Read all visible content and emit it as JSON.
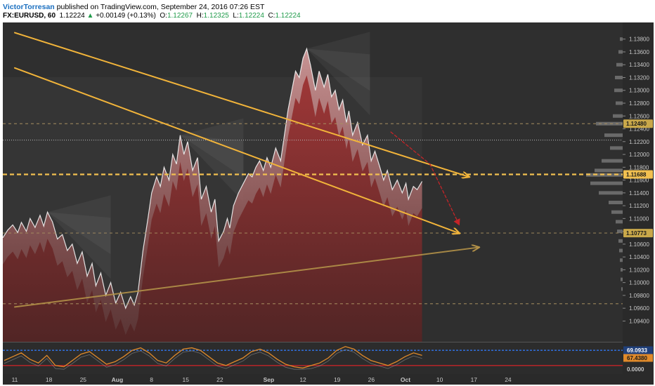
{
  "header": {
    "author": "VictorTorresan",
    "published": "published on TradingView.com, September 24, 2016 07:26 EST",
    "symbol": "FX:EURUSD, 60",
    "last": "1.12224",
    "change_arrow": "▲",
    "change": "+0.00149 (+0.13%)",
    "open_label": "O:",
    "open": "1.12267",
    "high_label": "H:",
    "high": "1.12325",
    "low_label": "L:",
    "low": "1.12224",
    "close_label": "C:",
    "close": "1.12224"
  },
  "chart_data": [
    {
      "type": "line",
      "symbol": "FX:EURUSD",
      "interval": "60",
      "x_tick_labels": [
        "11",
        "18",
        "25",
        "Aug",
        "8",
        "15",
        "22",
        "Sep",
        "12",
        "19",
        "26",
        "Oct",
        "10",
        "17",
        "24"
      ],
      "y_tick_labels": [
        "1.13800",
        "1.13600",
        "1.13400",
        "1.13200",
        "1.13000",
        "1.12800",
        "1.12600",
        "1.12400",
        "1.12200",
        "1.12000",
        "1.11800",
        "1.11600",
        "1.11400",
        "1.11200",
        "1.11000",
        "1.10800",
        "1.10600",
        "1.10400",
        "1.10200",
        "1.10000",
        "1.09800",
        "1.09600",
        "1.09400"
      ],
      "ylim": [
        1.0935,
        1.1395
      ],
      "price_path_x": [
        0,
        4,
        8,
        12,
        15,
        19,
        22,
        26,
        30,
        33,
        36,
        40,
        44,
        48,
        52,
        56,
        60,
        64,
        68,
        72,
        75,
        79,
        83,
        87,
        91,
        95,
        99,
        103,
        106,
        109,
        113,
        117,
        120,
        124,
        127,
        130,
        134,
        137,
        140,
        143,
        146,
        149,
        153,
        157,
        160,
        164,
        168,
        171,
        174,
        178,
        181,
        183,
        186,
        190,
        194,
        198,
        201,
        204,
        207,
        210,
        213,
        216,
        220,
        224,
        227,
        230,
        233,
        236,
        239,
        242,
        245,
        248,
        252,
        255,
        259,
        262,
        265,
        268,
        271,
        274,
        277,
        279,
        282,
        286,
        290,
        294,
        297,
        300,
        304,
        307,
        310,
        314,
        318,
        322,
        325,
        327,
        331,
        334,
        338
      ],
      "price_path_y": [
        1.107,
        1.1082,
        1.109,
        1.1078,
        1.1094,
        1.108,
        1.11,
        1.1086,
        1.1105,
        1.1088,
        1.111,
        1.1095,
        1.1068,
        1.1075,
        1.105,
        1.106,
        1.103,
        1.1048,
        1.101,
        1.103,
        1.0995,
        1.1015,
        1.098,
        1.1,
        1.0968,
        1.0985,
        1.096,
        1.0978,
        1.0965,
        1.0985,
        1.105,
        1.11,
        1.114,
        1.1165,
        1.115,
        1.118,
        1.116,
        1.12,
        1.1185,
        1.123,
        1.12,
        1.122,
        1.1175,
        1.1195,
        1.113,
        1.115,
        1.111,
        1.113,
        1.1065,
        1.108,
        1.11,
        1.1085,
        1.112,
        1.114,
        1.1155,
        1.117,
        1.1165,
        1.118,
        1.119,
        1.1175,
        1.1195,
        1.118,
        1.121,
        1.119,
        1.123,
        1.127,
        1.13,
        1.133,
        1.132,
        1.135,
        1.1365,
        1.134,
        1.13,
        1.133,
        1.1305,
        1.1325,
        1.129,
        1.13,
        1.127,
        1.1285,
        1.125,
        1.1268,
        1.123,
        1.125,
        1.1215,
        1.123,
        1.119,
        1.1205,
        1.118,
        1.116,
        1.1175,
        1.1145,
        1.116,
        1.114,
        1.1155,
        1.113,
        1.115,
        1.1145,
        1.1158
      ],
      "current_price": 1.12224,
      "price_labels": [
        "1.12480",
        "1.11688",
        "1.10773"
      ],
      "oscillator": {
        "value_labels": [
          "69.0933",
          "67.4380",
          "0.0000"
        ],
        "level_lines": [
          "upper",
          "middle",
          "lower"
        ]
      },
      "drawn_lines": [
        {
          "kind": "trend-line",
          "color": "#f2b43a",
          "from": [
            "Jul 11",
            1.139
          ],
          "to": [
            "Oct 12",
            1.1165
          ],
          "arrow": true
        },
        {
          "kind": "trend-line",
          "color": "#f2b43a",
          "from": [
            "Jul 11",
            1.1335
          ],
          "to": [
            "Oct 10",
            1.1077
          ],
          "arrow": true
        },
        {
          "kind": "trend-line",
          "color": "#b39148",
          "from": [
            "Jul 11",
            1.0962
          ],
          "to": [
            "Oct 14",
            1.1055
          ],
          "arrow": true
        },
        {
          "kind": "projection",
          "color": "#c42428",
          "from": [
            "Sep 26",
            1.1235
          ],
          "to": [
            "Oct 4",
            1.1185
          ]
        },
        {
          "kind": "projection",
          "color": "#c42428",
          "from": [
            "Oct 4",
            1.1185
          ],
          "to": [
            "Oct 10",
            1.109
          ],
          "arrow": true
        }
      ],
      "horizontal_levels": [
        1.1248,
        1.11688,
        1.10773,
        1.0967
      ],
      "grid": false
    }
  ]
}
